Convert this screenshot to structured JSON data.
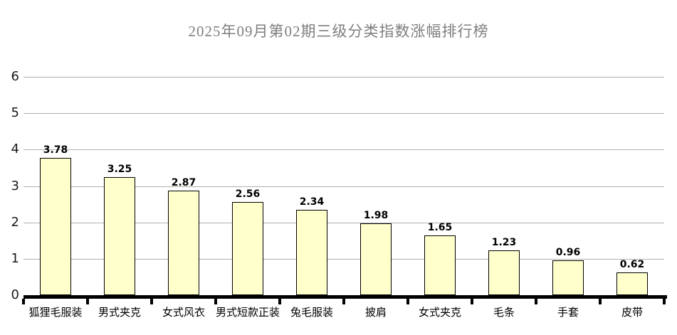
{
  "title": "2025年09月第02期三级分类指数涨幅排行榜",
  "chart_data": {
    "type": "bar",
    "title": "2025年09月第02期三级分类指数涨幅排行榜",
    "categories": [
      "狐狸毛服装",
      "男式夹克",
      "女式风衣",
      "男式短款正装",
      "兔毛服装",
      "披肩",
      "女式夹克",
      "毛条",
      "手套",
      "皮带"
    ],
    "values": [
      3.78,
      3.25,
      2.87,
      2.56,
      2.34,
      1.98,
      1.65,
      1.23,
      0.96,
      0.62
    ],
    "value_labels": [
      "3.78",
      "3.25",
      "2.87",
      "2.56",
      "2.34",
      "1.98",
      "1.65",
      "1.23",
      "0.96",
      "0.62"
    ],
    "xlabel": "",
    "ylabel": "",
    "ylim": [
      0,
      6
    ],
    "yticks": [
      0,
      1,
      2,
      3,
      4,
      5,
      6
    ],
    "grid": true,
    "legend": false,
    "colors": {
      "bar_fill": "#FFFFCC",
      "bar_border": "#000000",
      "gridline": "#B0B0B0",
      "axis": "#000000",
      "title_text": "#7F7F7F",
      "label_text": "#000000"
    }
  }
}
